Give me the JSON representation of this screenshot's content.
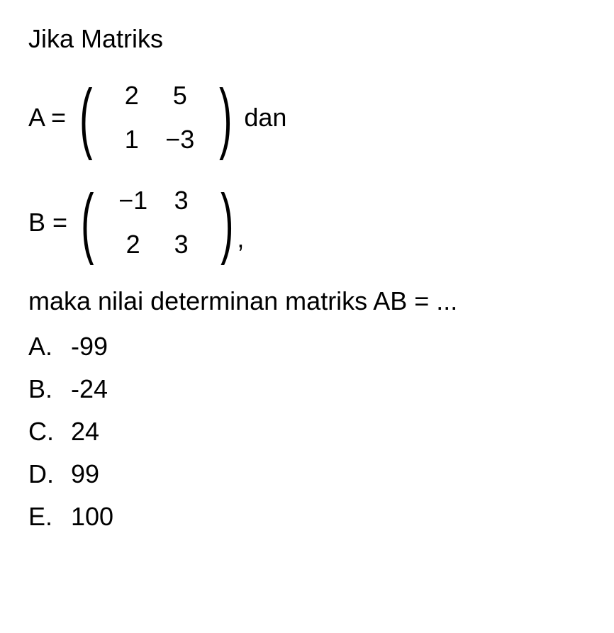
{
  "title": "Jika Matriks",
  "matrixA": {
    "label": "A = ",
    "rows": [
      [
        "2",
        "5"
      ],
      [
        "1",
        "−3"
      ]
    ],
    "after": "dan"
  },
  "matrixB": {
    "label": "B = ",
    "rows": [
      [
        "−1",
        "3"
      ],
      [
        "2",
        "3"
      ]
    ],
    "after": ","
  },
  "question": "maka nilai determinan matriks AB = ...",
  "options": [
    {
      "letter": "A.",
      "value": "-99"
    },
    {
      "letter": "B.",
      "value": "-24"
    },
    {
      "letter": "C.",
      "value": "24"
    },
    {
      "letter": "D.",
      "value": "99"
    },
    {
      "letter": "E.",
      "value": "100"
    }
  ]
}
